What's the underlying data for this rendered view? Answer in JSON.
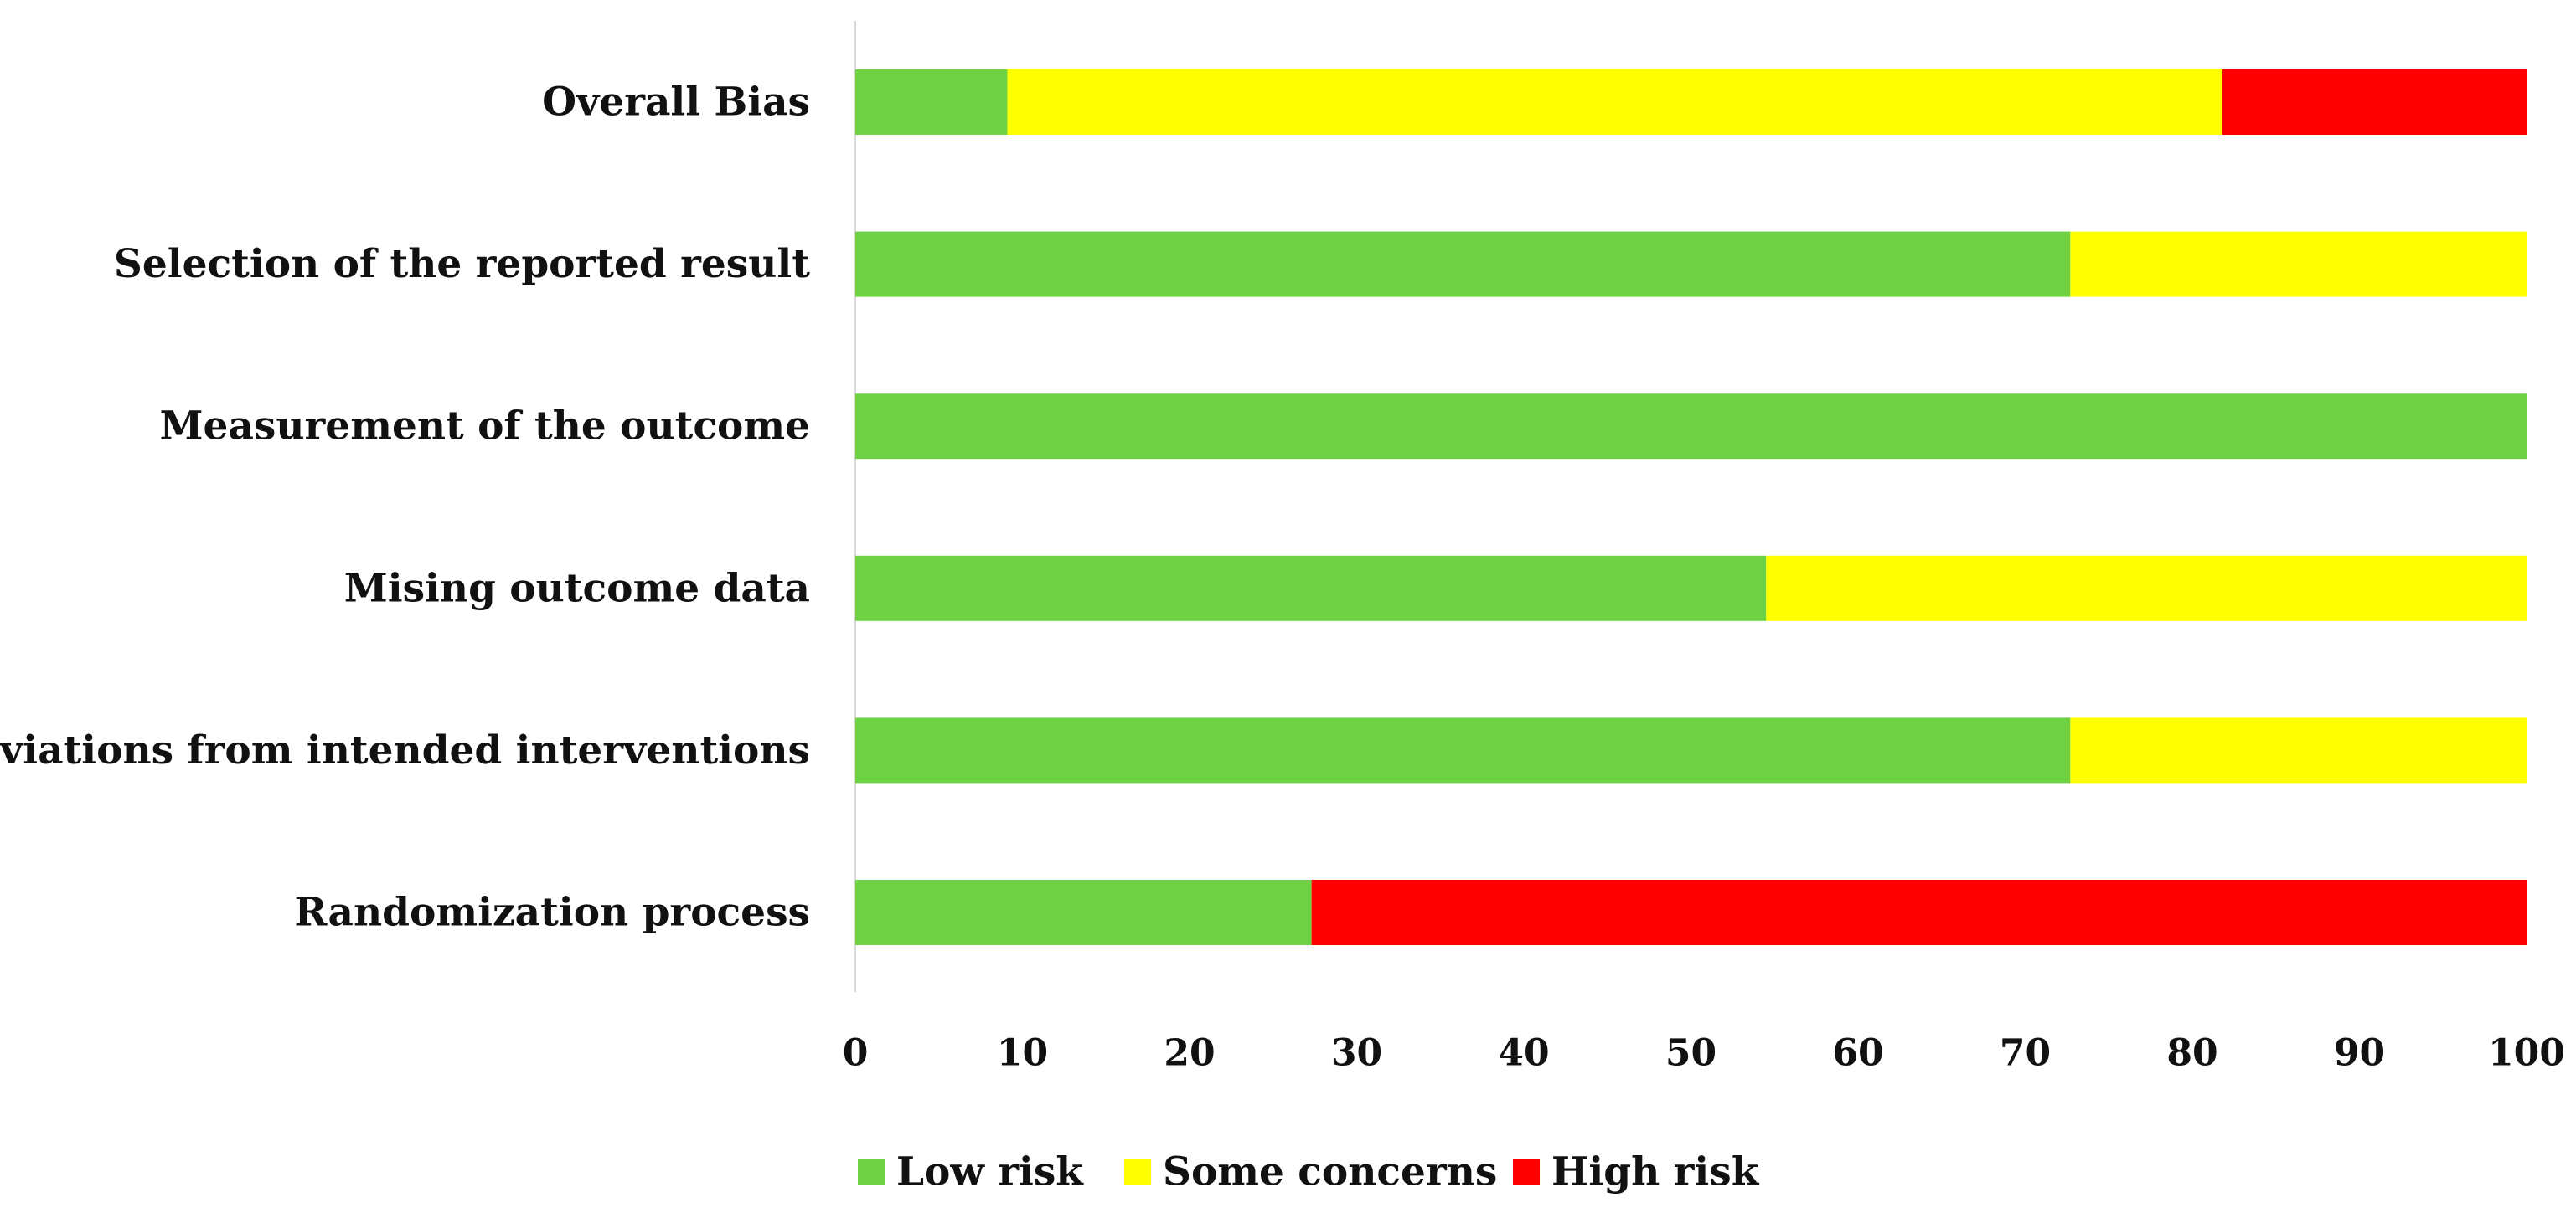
{
  "chart_data": {
    "type": "bar",
    "orientation": "horizontal",
    "stacked": true,
    "title": "",
    "xlabel": "",
    "ylabel": "",
    "xlim": [
      0,
      100
    ],
    "xticks": [
      "0",
      "10",
      "20",
      "30",
      "40",
      "50",
      "60",
      "70",
      "80",
      "90",
      "100"
    ],
    "categories": [
      "Overall Bias",
      "Selection of the reported result",
      "Measurement of the outcome",
      "Mising outcome data",
      "Deviations from intended interventions",
      "Randomization process"
    ],
    "series": [
      {
        "name": "Low risk",
        "color": "#6fd244",
        "values": [
          9.1,
          72.7,
          100,
          54.5,
          72.7,
          27.3
        ]
      },
      {
        "name": "Some concerns",
        "color": "#ffff00",
        "values": [
          72.7,
          27.3,
          0,
          45.5,
          27.3,
          0
        ]
      },
      {
        "name": "High risk",
        "color": "#ff0000",
        "values": [
          18.2,
          0,
          0,
          0,
          0,
          72.7
        ]
      }
    ],
    "grid": false,
    "legend_position": "bottom"
  }
}
